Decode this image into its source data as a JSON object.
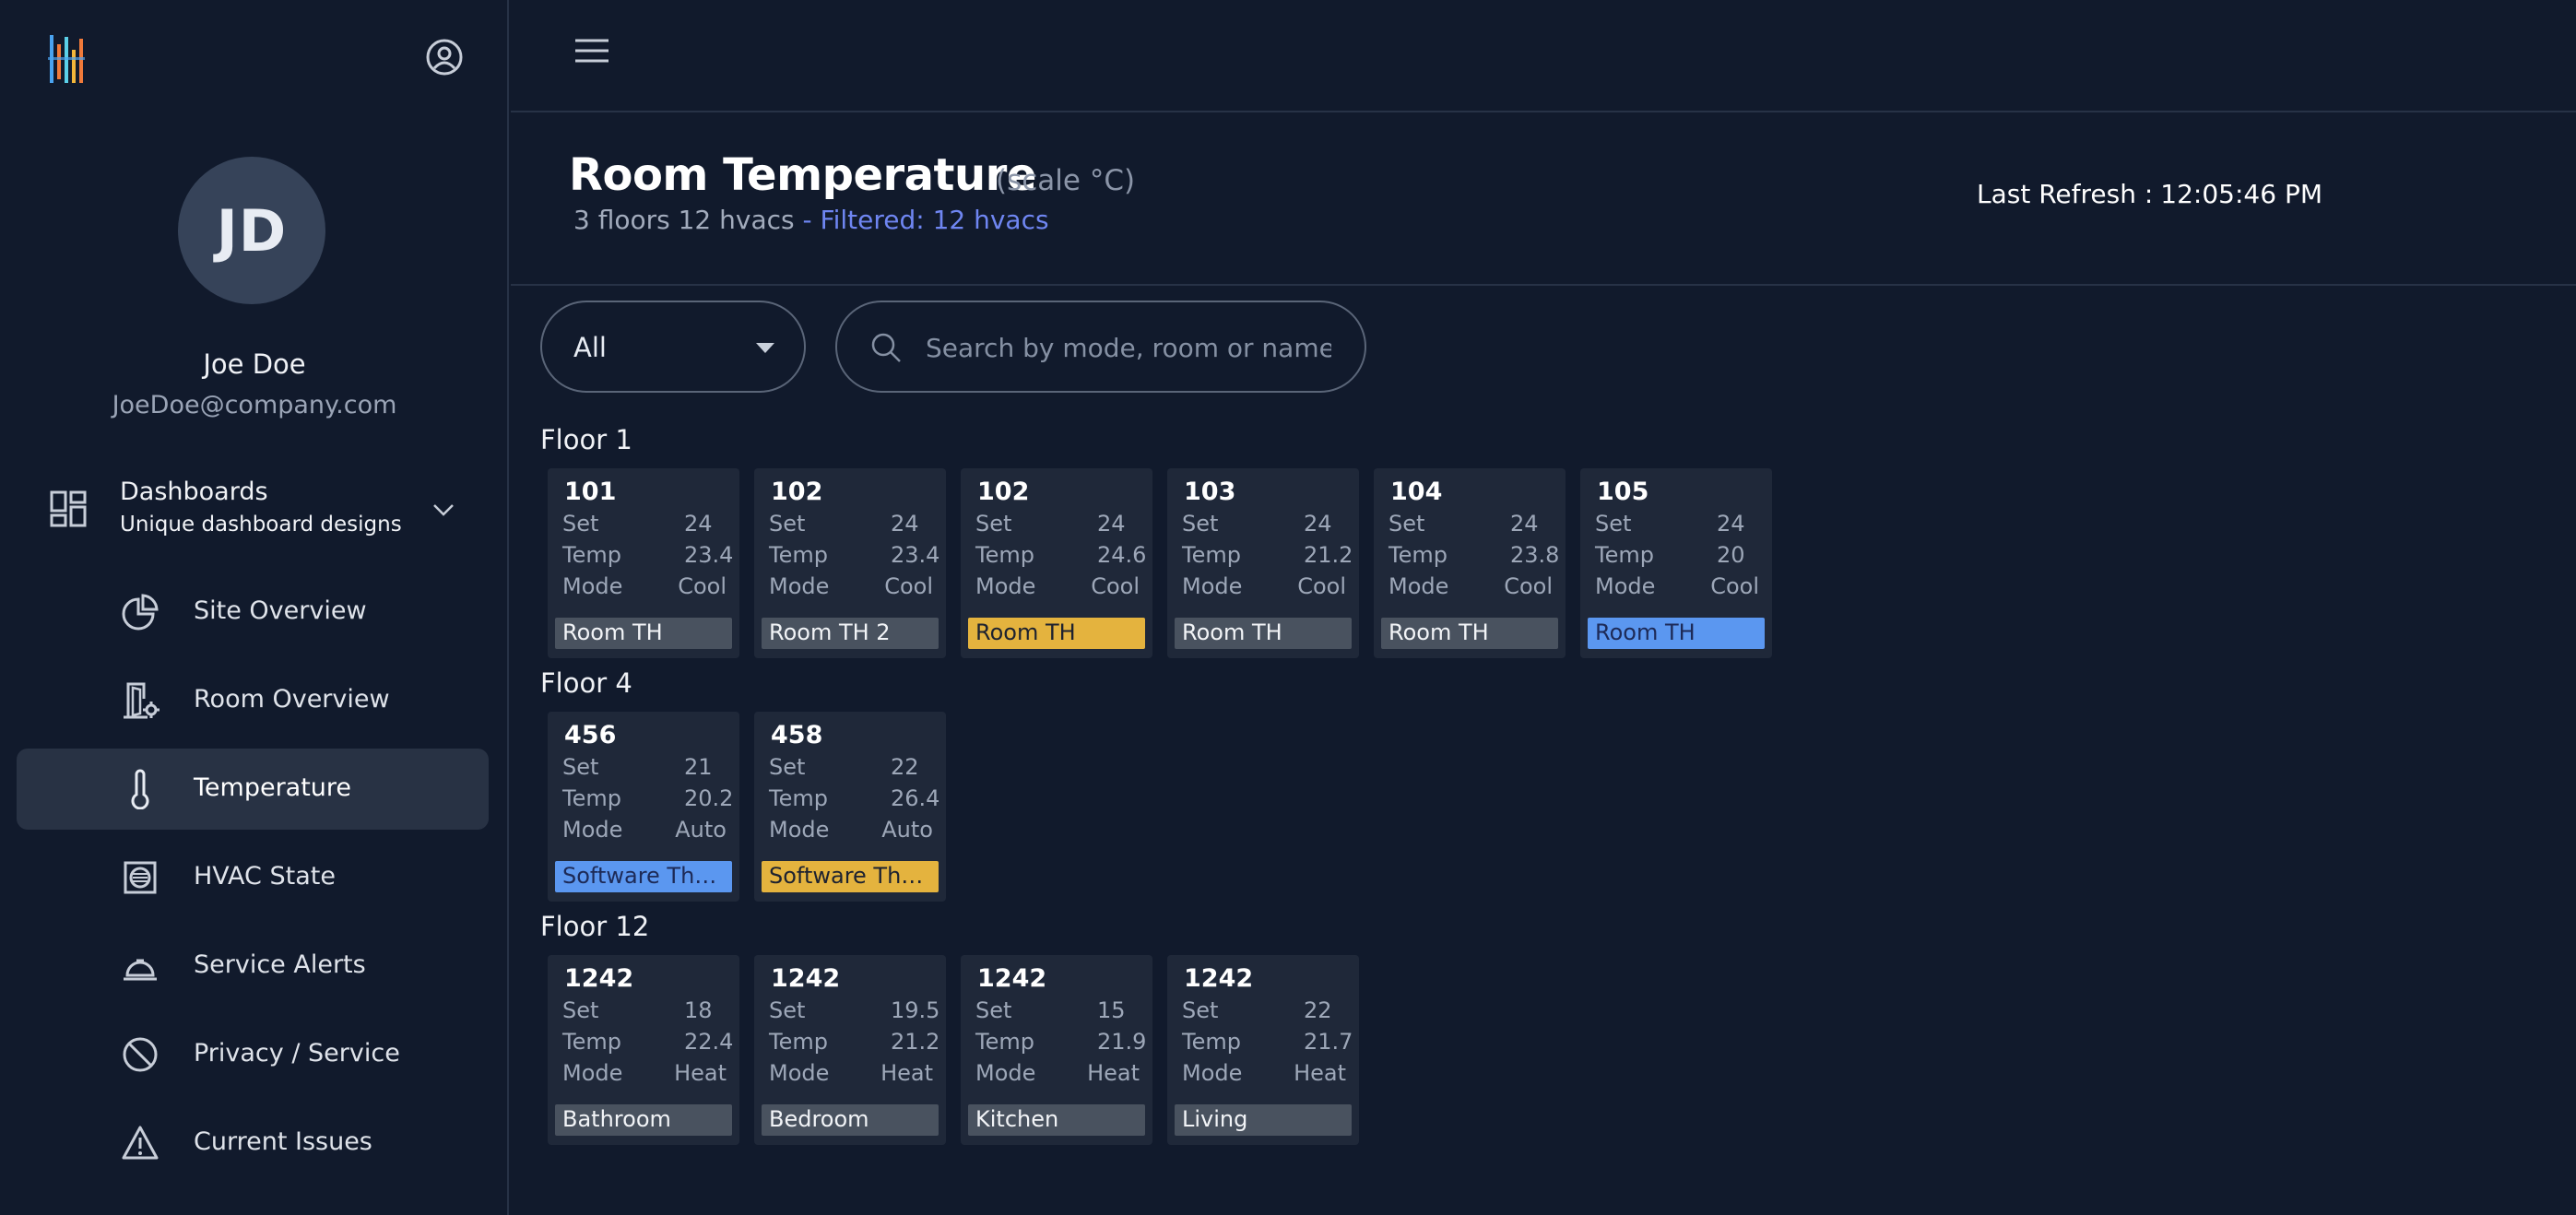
{
  "sidebar": {
    "avatar_initials": "JD",
    "user_name": "Joe Doe",
    "user_email": "JoeDoe@company.com",
    "dashboards": {
      "title": "Dashboards",
      "subtitle": "Unique dashboard designs"
    },
    "nav": [
      {
        "label": "Site Overview",
        "icon": "pie-chart-icon"
      },
      {
        "label": "Room Overview",
        "icon": "door-gear-icon"
      },
      {
        "label": "Temperature",
        "icon": "thermometer-icon",
        "active": true
      },
      {
        "label": "HVAC State",
        "icon": "hvac-unit-icon"
      },
      {
        "label": "Service Alerts",
        "icon": "service-bell-icon"
      },
      {
        "label": "Privacy / Service",
        "icon": "prohibited-icon"
      },
      {
        "label": "Current Issues",
        "icon": "warning-icon"
      }
    ]
  },
  "header": {
    "title": "Room Temperature",
    "scale": "(scale °C)",
    "summary": "3 floors 12 hvacs",
    "filtered": "- Filtered: 12 hvacs",
    "refresh_label": "Last Refresh :",
    "refresh_time": "12:05:46 PM"
  },
  "filters": {
    "select_value": "All",
    "search_placeholder": "Search by mode, room or name"
  },
  "labels": {
    "set": "Set",
    "temp": "Temp",
    "mode": "Mode"
  },
  "colors": {
    "accent": "#6f86f2",
    "tag_gray": "#49525f",
    "tag_yellow": "#e4b33e",
    "tag_blue": "#5b97f0"
  },
  "floors": [
    {
      "name": "Floor 1",
      "cards": [
        {
          "room": "101",
          "set": "24",
          "temp": "23.4",
          "mode": "Cool",
          "tag": "Room TH",
          "tag_color": "gray"
        },
        {
          "room": "102",
          "set": "24",
          "temp": "23.4",
          "mode": "Cool",
          "tag": "Room TH 2",
          "tag_color": "gray"
        },
        {
          "room": "102",
          "set": "24",
          "temp": "24.6",
          "mode": "Cool",
          "tag": "Room TH",
          "tag_color": "yellow"
        },
        {
          "room": "103",
          "set": "24",
          "temp": "21.2",
          "mode": "Cool",
          "tag": "Room TH",
          "tag_color": "gray"
        },
        {
          "room": "104",
          "set": "24",
          "temp": "23.8",
          "mode": "Cool",
          "tag": "Room TH",
          "tag_color": "gray"
        },
        {
          "room": "105",
          "set": "24",
          "temp": "20",
          "mode": "Cool",
          "tag": "Room TH",
          "tag_color": "blue"
        }
      ]
    },
    {
      "name": "Floor 4",
      "cards": [
        {
          "room": "456",
          "set": "21",
          "temp": "20.2",
          "mode": "Auto",
          "tag": "Software Ther...",
          "tag_color": "blue"
        },
        {
          "room": "458",
          "set": "22",
          "temp": "26.4",
          "mode": "Auto",
          "tag": "Software Ther...",
          "tag_color": "yellow"
        }
      ]
    },
    {
      "name": "Floor 12",
      "cards": [
        {
          "room": "1242",
          "set": "18",
          "temp": "22.4",
          "mode": "Heat",
          "tag": "Bathroom",
          "tag_color": "gray"
        },
        {
          "room": "1242",
          "set": "19.5",
          "temp": "21.2",
          "mode": "Heat",
          "tag": "Bedroom",
          "tag_color": "gray"
        },
        {
          "room": "1242",
          "set": "15",
          "temp": "21.9",
          "mode": "Heat",
          "tag": "Kitchen",
          "tag_color": "gray"
        },
        {
          "room": "1242",
          "set": "22",
          "temp": "21.7",
          "mode": "Heat",
          "tag": "Living",
          "tag_color": "gray"
        }
      ]
    }
  ]
}
